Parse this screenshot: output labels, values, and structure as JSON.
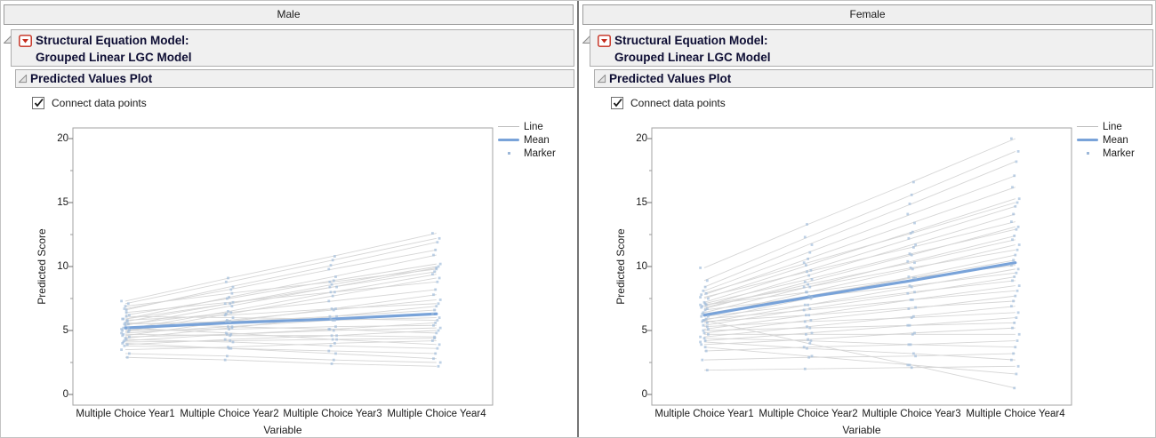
{
  "panels": [
    {
      "group_title": "Male",
      "model_title_line1": "Structural Equation Model:",
      "model_title_line2": "Grouped Linear LGC Model",
      "section_title": "Predicted Values Plot",
      "checkbox": {
        "label": "Connect data points",
        "checked": true
      }
    },
    {
      "group_title": "Female",
      "model_title_line1": "Structural Equation Model:",
      "model_title_line2": "Grouped Linear LGC Model",
      "section_title": "Predicted Values Plot",
      "checkbox": {
        "label": "Connect data points",
        "checked": true
      }
    }
  ],
  "chart_data": [
    {
      "type": "line",
      "group": "Male",
      "categories": [
        "Multiple Choice Year1",
        "Multiple Choice Year2",
        "Multiple Choice Year3",
        "Multiple Choice Year4"
      ],
      "xlabel": "Variable",
      "ylabel": "Predicted Score",
      "ylim": [
        0,
        20
      ],
      "yticks": [
        20,
        15,
        10,
        5,
        0
      ],
      "yticks_minor": [
        17.5,
        12.5,
        7.5,
        2.5
      ],
      "grid": false,
      "legend": [
        "Line",
        "Mean",
        "Marker"
      ],
      "legend_position": "right-top",
      "colors": {
        "line": "#d6d6d6",
        "mean": "#79a3d9",
        "marker": "#a3bddc",
        "frame": "#a3a3a3"
      },
      "mean_values": [
        5.2,
        5.6,
        5.9,
        6.3
      ],
      "subjects": [
        [
          7.3,
          9.1,
          10.8,
          12.6
        ],
        [
          7.1,
          8.8,
          10.5,
          12.2
        ],
        [
          6.6,
          8.4,
          10.1,
          11.9
        ],
        [
          6.7,
          8.2,
          9.8,
          11.3
        ],
        [
          5.9,
          7.6,
          9.2,
          10.9
        ],
        [
          6.2,
          7.5,
          8.9,
          10.2
        ],
        [
          5.7,
          7.1,
          8.6,
          10.0
        ],
        [
          5.4,
          6.9,
          8.4,
          9.9
        ],
        [
          5.9,
          7.1,
          8.4,
          9.6
        ],
        [
          5.1,
          6.5,
          8.0,
          9.4
        ],
        [
          4.9,
          6.3,
          7.7,
          9.1
        ],
        [
          6.4,
          7.2,
          8.0,
          8.8
        ],
        [
          5.5,
          6.4,
          7.3,
          8.2
        ],
        [
          4.6,
          5.7,
          6.7,
          7.8
        ],
        [
          5.0,
          5.8,
          6.6,
          7.4
        ],
        [
          5.8,
          6.2,
          6.7,
          7.1
        ],
        [
          4.4,
          5.2,
          6.1,
          6.9
        ],
        [
          5.2,
          5.7,
          6.1,
          6.6
        ],
        [
          4.8,
          5.3,
          5.8,
          6.3
        ],
        [
          5.5,
          5.7,
          5.8,
          6.0
        ],
        [
          6.1,
          6.0,
          5.9,
          5.8
        ],
        [
          4.2,
          4.7,
          5.1,
          5.6
        ],
        [
          5.0,
          5.1,
          5.3,
          5.4
        ],
        [
          4.5,
          4.7,
          5.0,
          5.2
        ],
        [
          3.9,
          4.3,
          4.6,
          5.0
        ],
        [
          5.6,
          5.3,
          5.1,
          4.8
        ],
        [
          4.7,
          4.6,
          4.6,
          4.5
        ],
        [
          3.5,
          3.7,
          4.0,
          4.2
        ],
        [
          5.2,
          4.8,
          4.3,
          3.9
        ],
        [
          4.3,
          4.1,
          3.8,
          3.6
        ],
        [
          3.8,
          3.6,
          3.4,
          3.2
        ],
        [
          4.0,
          3.6,
          3.2,
          2.8
        ],
        [
          3.2,
          3.0,
          2.7,
          2.5
        ],
        [
          2.9,
          2.7,
          2.4,
          2.2
        ],
        [
          6.9,
          7.9,
          8.8,
          9.8
        ],
        [
          4.1,
          4.2,
          4.3,
          4.4
        ]
      ]
    },
    {
      "type": "line",
      "group": "Female",
      "categories": [
        "Multiple Choice Year1",
        "Multiple Choice Year2",
        "Multiple Choice Year3",
        "Multiple Choice Year4"
      ],
      "xlabel": "Variable",
      "ylabel": "Predicted Score",
      "ylim": [
        0,
        20
      ],
      "yticks": [
        20,
        15,
        10,
        5,
        0
      ],
      "yticks_minor": [
        17.5,
        12.5,
        7.5,
        2.5
      ],
      "grid": false,
      "legend": [
        "Line",
        "Mean",
        "Marker"
      ],
      "legend_position": "right-top",
      "colors": {
        "line": "#d6d6d6",
        "mean": "#79a3d9",
        "marker": "#a3bddc",
        "frame": "#a3a3a3"
      },
      "mean_values": [
        6.2,
        7.6,
        8.9,
        10.3
      ],
      "subjects": [
        [
          9.9,
          13.3,
          16.6,
          20.0
        ],
        [
          8.9,
          12.3,
          15.6,
          19.0
        ],
        [
          8.4,
          11.7,
          14.9,
          18.2
        ],
        [
          8.1,
          11.1,
          14.1,
          17.1
        ],
        [
          7.8,
          10.6,
          13.4,
          16.2
        ],
        [
          7.5,
          10.1,
          12.7,
          15.3
        ],
        [
          7.9,
          10.3,
          12.6,
          15.0
        ],
        [
          7.2,
          9.7,
          12.2,
          14.7
        ],
        [
          6.9,
          9.3,
          11.7,
          14.1
        ],
        [
          7.6,
          9.6,
          11.5,
          13.5
        ],
        [
          6.7,
          8.8,
          10.9,
          13.1
        ],
        [
          7.1,
          9.0,
          11.0,
          12.9
        ],
        [
          6.4,
          8.4,
          10.4,
          12.4
        ],
        [
          6.8,
          8.6,
          10.3,
          12.1
        ],
        [
          6.1,
          8.0,
          9.8,
          11.7
        ],
        [
          7.0,
          8.4,
          9.9,
          11.3
        ],
        [
          5.8,
          7.5,
          9.2,
          10.9
        ],
        [
          6.3,
          7.7,
          9.1,
          10.5
        ],
        [
          7.0,
          8.0,
          9.1,
          10.1
        ],
        [
          5.6,
          7.0,
          8.4,
          9.8
        ],
        [
          6.6,
          7.6,
          8.5,
          9.5
        ],
        [
          5.4,
          6.7,
          7.9,
          9.2
        ],
        [
          6.1,
          7.0,
          8.0,
          8.9
        ],
        [
          5.1,
          6.2,
          7.4,
          8.5
        ],
        [
          5.9,
          6.6,
          7.4,
          8.1
        ],
        [
          4.8,
          5.8,
          6.7,
          7.7
        ],
        [
          5.7,
          6.2,
          6.8,
          7.3
        ],
        [
          4.5,
          5.3,
          6.1,
          6.9
        ],
        [
          5.3,
          5.7,
          6.0,
          6.4
        ],
        [
          4.2,
          4.8,
          5.4,
          6.0
        ],
        [
          5.0,
          5.2,
          5.4,
          5.6
        ],
        [
          3.9,
          4.3,
          4.8,
          5.2
        ],
        [
          4.7,
          4.7,
          4.7,
          4.7
        ],
        [
          3.4,
          3.7,
          3.9,
          4.2
        ],
        [
          4.4,
          4.2,
          3.9,
          3.7
        ],
        [
          2.7,
          2.9,
          3.0,
          3.2
        ],
        [
          4.1,
          3.6,
          3.2,
          2.7
        ],
        [
          1.9,
          2.0,
          2.1,
          2.2
        ],
        [
          3.7,
          3.0,
          2.3,
          1.6
        ],
        [
          5.8,
          4.0,
          2.3,
          0.5
        ]
      ]
    }
  ]
}
